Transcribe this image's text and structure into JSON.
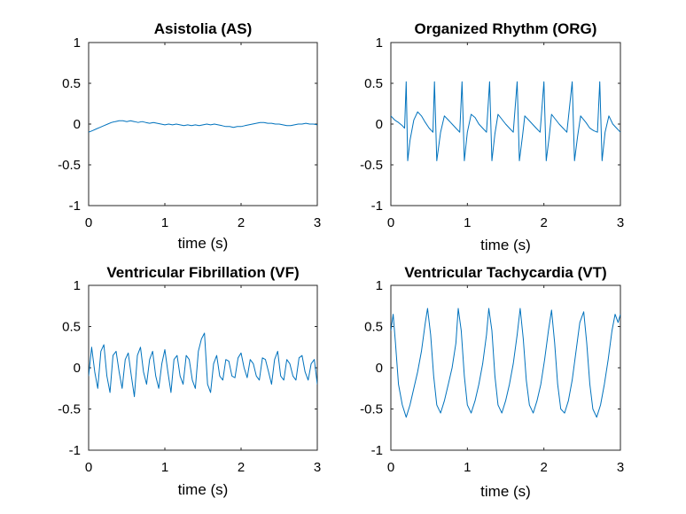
{
  "chart_data": [
    {
      "type": "line",
      "title": "Asistolia (AS)",
      "xlabel": "time (s)",
      "ylabel": "",
      "xlim": [
        0,
        3
      ],
      "ylim": [
        -1,
        1
      ],
      "xticks": [
        "0",
        "1",
        "2",
        "3"
      ],
      "yticks": [
        "1",
        "0.5",
        "0",
        "-0.5",
        "-1"
      ],
      "grid": false,
      "line_color": "#0072BD",
      "series": [
        {
          "x": [
            0,
            0.05,
            0.1,
            0.15,
            0.2,
            0.25,
            0.3,
            0.35,
            0.4,
            0.45,
            0.5,
            0.55,
            0.6,
            0.65,
            0.7,
            0.75,
            0.8,
            0.85,
            0.9,
            0.95,
            1.0,
            1.05,
            1.1,
            1.15,
            1.2,
            1.25,
            1.3,
            1.35,
            1.4,
            1.45,
            1.5,
            1.55,
            1.6,
            1.65,
            1.7,
            1.75,
            1.8,
            1.85,
            1.9,
            1.95,
            2.0,
            2.05,
            2.1,
            2.15,
            2.2,
            2.25,
            2.3,
            2.35,
            2.4,
            2.45,
            2.5,
            2.55,
            2.6,
            2.65,
            2.7,
            2.75,
            2.8,
            2.85,
            2.9,
            2.95,
            3.0
          ],
          "y": [
            -0.1,
            -0.08,
            -0.06,
            -0.04,
            -0.02,
            0.0,
            0.02,
            0.03,
            0.04,
            0.04,
            0.03,
            0.04,
            0.03,
            0.02,
            0.03,
            0.02,
            0.01,
            0.02,
            0.01,
            0.0,
            -0.01,
            0.0,
            -0.01,
            0.0,
            -0.01,
            -0.02,
            -0.01,
            -0.02,
            -0.01,
            -0.02,
            -0.01,
            0.0,
            -0.01,
            0.0,
            -0.01,
            -0.02,
            -0.03,
            -0.03,
            -0.04,
            -0.03,
            -0.03,
            -0.02,
            -0.01,
            0.0,
            0.01,
            0.02,
            0.02,
            0.01,
            0.01,
            0.0,
            0.0,
            -0.01,
            -0.02,
            -0.02,
            -0.01,
            0.0,
            0.0,
            0.01,
            0.0,
            0.0,
            -0.01
          ]
        }
      ]
    },
    {
      "type": "line",
      "title": "Organized Rhythm (ORG)",
      "xlabel": "time (s)",
      "ylabel": "",
      "xlim": [
        0,
        3
      ],
      "ylim": [
        -1,
        1
      ],
      "xticks": [
        "0",
        "1",
        "2",
        "3"
      ],
      "yticks": [
        "1",
        "0.5",
        "0",
        "-0.5",
        "-1"
      ],
      "grid": false,
      "line_color": "#0072BD",
      "beats_s": [
        0.2,
        0.57,
        0.93,
        1.29,
        1.65,
        2.0,
        2.37,
        2.73
      ],
      "peak": 0.52,
      "trough": -0.45,
      "series": [
        {
          "x": [
            0,
            0.05,
            0.1,
            0.15,
            0.18,
            0.2,
            0.22,
            0.25,
            0.3,
            0.35,
            0.4,
            0.45,
            0.5,
            0.55,
            0.57,
            0.6,
            0.65,
            0.7,
            0.75,
            0.8,
            0.85,
            0.9,
            0.93,
            0.96,
            1.0,
            1.05,
            1.1,
            1.15,
            1.2,
            1.25,
            1.29,
            1.32,
            1.36,
            1.4,
            1.45,
            1.5,
            1.55,
            1.6,
            1.65,
            1.68,
            1.72,
            1.75,
            1.8,
            1.85,
            1.9,
            1.95,
            2.0,
            2.03,
            2.07,
            2.1,
            2.15,
            2.2,
            2.25,
            2.3,
            2.37,
            2.4,
            2.44,
            2.48,
            2.55,
            2.6,
            2.65,
            2.7,
            2.73,
            2.76,
            2.8,
            2.85,
            2.9,
            2.95,
            3.0
          ],
          "y": [
            0.1,
            0.05,
            0.02,
            -0.02,
            -0.05,
            0.52,
            -0.45,
            -0.2,
            0.05,
            0.15,
            0.1,
            0.02,
            -0.05,
            -0.1,
            0.52,
            -0.45,
            -0.1,
            0.1,
            0.05,
            0.0,
            -0.05,
            -0.1,
            0.52,
            -0.45,
            -0.1,
            0.12,
            0.08,
            0.0,
            -0.05,
            -0.1,
            0.52,
            -0.45,
            -0.12,
            0.12,
            0.06,
            0.0,
            -0.05,
            -0.1,
            0.52,
            -0.45,
            -0.15,
            0.1,
            0.05,
            0.0,
            -0.05,
            -0.1,
            0.52,
            -0.45,
            -0.15,
            0.12,
            0.06,
            0.0,
            -0.05,
            -0.1,
            0.52,
            -0.45,
            -0.15,
            0.1,
            0.02,
            -0.05,
            -0.08,
            -0.1,
            0.52,
            -0.45,
            -0.1,
            0.1,
            0.0,
            -0.05,
            -0.1
          ]
        }
      ]
    },
    {
      "type": "line",
      "title": "Ventricular Fibrillation (VF)",
      "xlabel": "time (s)",
      "ylabel": "",
      "xlim": [
        0,
        3
      ],
      "ylim": [
        -1,
        1
      ],
      "xticks": [
        "0",
        "1",
        "2",
        "3"
      ],
      "yticks": [
        "1",
        "0.5",
        "0",
        "-0.5",
        "-1"
      ],
      "grid": false,
      "line_color": "#0072BD",
      "series": [
        {
          "x": [
            0,
            0.04,
            0.08,
            0.12,
            0.16,
            0.2,
            0.24,
            0.28,
            0.32,
            0.36,
            0.4,
            0.44,
            0.48,
            0.52,
            0.56,
            0.6,
            0.64,
            0.68,
            0.72,
            0.76,
            0.8,
            0.84,
            0.88,
            0.92,
            0.96,
            1.0,
            1.04,
            1.08,
            1.12,
            1.16,
            1.2,
            1.24,
            1.28,
            1.32,
            1.36,
            1.4,
            1.44,
            1.48,
            1.52,
            1.56,
            1.6,
            1.64,
            1.68,
            1.72,
            1.76,
            1.8,
            1.84,
            1.88,
            1.92,
            1.96,
            2.0,
            2.04,
            2.08,
            2.12,
            2.16,
            2.2,
            2.24,
            2.28,
            2.32,
            2.36,
            2.4,
            2.44,
            2.48,
            2.52,
            2.56,
            2.6,
            2.64,
            2.68,
            2.72,
            2.76,
            2.8,
            2.84,
            2.88,
            2.92,
            2.96,
            3.0
          ],
          "y": [
            -0.1,
            0.25,
            -0.05,
            -0.25,
            0.2,
            0.28,
            -0.1,
            -0.3,
            0.15,
            0.2,
            -0.05,
            -0.25,
            0.1,
            0.18,
            -0.1,
            -0.35,
            0.15,
            0.25,
            -0.05,
            -0.2,
            0.1,
            0.2,
            -0.1,
            -0.25,
            0.05,
            0.22,
            -0.05,
            -0.3,
            0.1,
            0.15,
            -0.1,
            -0.2,
            0.15,
            0.1,
            -0.15,
            -0.25,
            0.2,
            0.35,
            0.42,
            -0.2,
            -0.3,
            0.05,
            0.15,
            -0.1,
            -0.15,
            0.1,
            0.08,
            -0.1,
            -0.12,
            0.12,
            0.18,
            0.0,
            -0.12,
            0.1,
            0.05,
            -0.1,
            -0.15,
            0.12,
            0.1,
            -0.05,
            -0.2,
            0.1,
            0.2,
            -0.1,
            -0.15,
            0.1,
            0.05,
            -0.1,
            -0.15,
            0.12,
            0.15,
            -0.05,
            -0.15,
            0.05,
            0.1,
            -0.2
          ]
        }
      ]
    },
    {
      "type": "line",
      "title": "Ventricular Tachycardia (VT)",
      "xlabel": "time (s)",
      "ylabel": "",
      "xlim": [
        0,
        3
      ],
      "ylim": [
        -1,
        1
      ],
      "xticks": [
        "0",
        "1",
        "2",
        "3"
      ],
      "yticks": [
        "1",
        "0.5",
        "0",
        "-0.5",
        "-1"
      ],
      "grid": false,
      "line_color": "#0072BD",
      "series": [
        {
          "x": [
            0,
            0.03,
            0.06,
            0.1,
            0.15,
            0.2,
            0.25,
            0.3,
            0.35,
            0.4,
            0.45,
            0.48,
            0.52,
            0.56,
            0.6,
            0.65,
            0.7,
            0.75,
            0.8,
            0.85,
            0.88,
            0.92,
            0.96,
            1.0,
            1.05,
            1.1,
            1.15,
            1.2,
            1.25,
            1.28,
            1.32,
            1.36,
            1.4,
            1.45,
            1.5,
            1.55,
            1.6,
            1.65,
            1.69,
            1.73,
            1.77,
            1.81,
            1.86,
            1.91,
            1.96,
            2.01,
            2.06,
            2.1,
            2.14,
            2.18,
            2.22,
            2.27,
            2.32,
            2.37,
            2.42,
            2.47,
            2.52,
            2.56,
            2.6,
            2.64,
            2.69,
            2.74,
            2.79,
            2.84,
            2.89,
            2.93,
            2.97,
            3.0
          ],
          "y": [
            0.45,
            0.65,
            0.3,
            -0.2,
            -0.45,
            -0.6,
            -0.45,
            -0.25,
            -0.05,
            0.2,
            0.55,
            0.72,
            0.4,
            -0.1,
            -0.45,
            -0.55,
            -0.4,
            -0.2,
            0.0,
            0.3,
            0.72,
            0.45,
            -0.1,
            -0.45,
            -0.55,
            -0.4,
            -0.2,
            0.05,
            0.4,
            0.72,
            0.45,
            -0.1,
            -0.45,
            -0.55,
            -0.4,
            -0.2,
            0.05,
            0.4,
            0.72,
            0.35,
            -0.15,
            -0.45,
            -0.55,
            -0.4,
            -0.2,
            0.1,
            0.45,
            0.7,
            0.3,
            -0.2,
            -0.5,
            -0.55,
            -0.4,
            -0.15,
            0.2,
            0.55,
            0.68,
            0.3,
            -0.2,
            -0.5,
            -0.6,
            -0.45,
            -0.2,
            0.1,
            0.45,
            0.65,
            0.55,
            0.65
          ]
        }
      ]
    }
  ]
}
